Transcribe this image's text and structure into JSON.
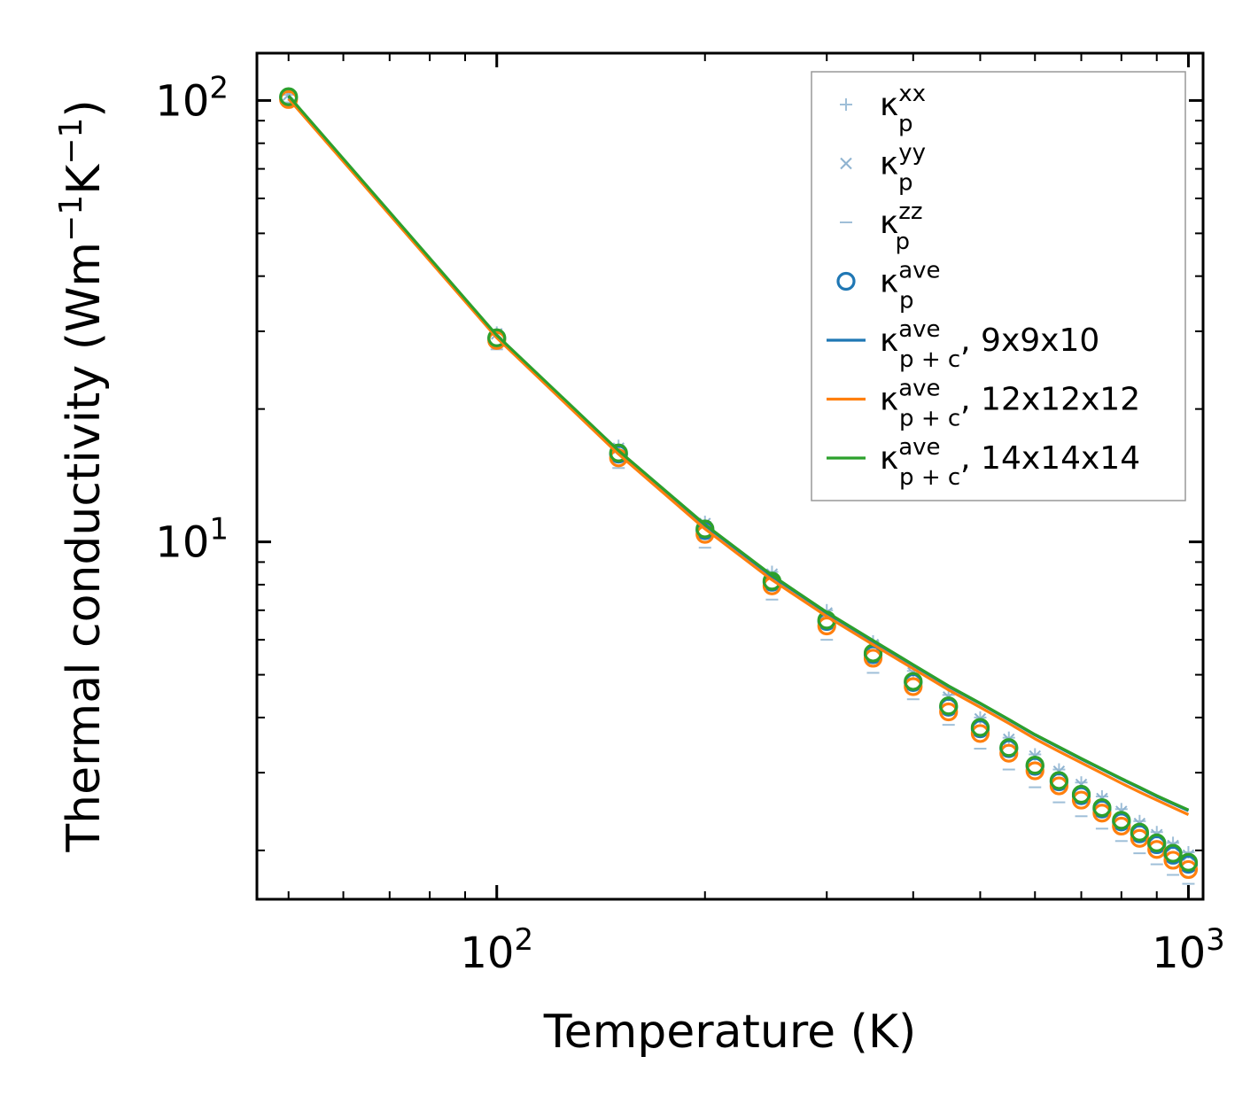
{
  "chart_data": {
    "type": "scatter",
    "x_scale": "log",
    "y_scale": "log",
    "xlabel": "Temperature (K)",
    "ylabel_parts": {
      "base": "Thermal conductivity (Wm",
      "exp1": "−1",
      "mid": "K",
      "exp2": "−1",
      "end": ")"
    },
    "xlim": [
      45,
      1050
    ],
    "ylim": [
      1.55,
      128
    ],
    "x_tick_labels": [
      {
        "value": 100,
        "base": "10",
        "exp": "2"
      },
      {
        "value": 1000,
        "base": "10",
        "exp": "3"
      }
    ],
    "y_tick_labels": [
      {
        "value": 10,
        "base": "10",
        "exp": "1"
      },
      {
        "value": 100,
        "base": "10",
        "exp": "2"
      }
    ],
    "grid": false,
    "legend_position": "top-right",
    "x": [
      50,
      100,
      150,
      200,
      250,
      300,
      350,
      400,
      450,
      500,
      550,
      600,
      650,
      700,
      750,
      800,
      850,
      900,
      950,
      1000
    ],
    "series": [
      {
        "name": "kappa_p_xx",
        "marker": "plus",
        "color": "#9fbfd8",
        "values": [
          103,
          29.8,
          16.5,
          11.1,
          8.55,
          7.0,
          5.95,
          5.1,
          4.5,
          4.0,
          3.6,
          3.3,
          3.05,
          2.85,
          2.65,
          2.48,
          2.33,
          2.2,
          2.08,
          1.98
        ]
      },
      {
        "name": "kappa_p_yy",
        "marker": "cross",
        "color": "#8fb3d0",
        "values": [
          103,
          29.6,
          16.3,
          11.0,
          8.45,
          6.9,
          5.85,
          5.05,
          4.45,
          3.97,
          3.57,
          3.27,
          3.02,
          2.82,
          2.62,
          2.45,
          2.3,
          2.17,
          2.05,
          1.95
        ]
      },
      {
        "name": "kappa_p_zz",
        "marker": "dash",
        "color": "#9fbfd8",
        "values": [
          99,
          27.3,
          14.7,
          9.7,
          7.4,
          6.0,
          5.05,
          4.4,
          3.85,
          3.4,
          3.05,
          2.78,
          2.57,
          2.39,
          2.24,
          2.1,
          1.97,
          1.86,
          1.76,
          1.68
        ]
      },
      {
        "name": "kappa_p_ave",
        "marker": "circle",
        "color": "#1f77b4",
        "values": [
          101.5,
          28.9,
          15.8,
          10.6,
          8.1,
          6.6,
          5.55,
          4.8,
          4.22,
          3.77,
          3.4,
          3.1,
          2.86,
          2.66,
          2.48,
          2.32,
          2.18,
          2.06,
          1.95,
          1.86
        ]
      },
      {
        "name": "kappa_p_ave_12",
        "marker": "circle",
        "color": "#ff7f0e",
        "values": [
          100.5,
          28.6,
          15.5,
          10.4,
          7.95,
          6.45,
          5.45,
          4.7,
          4.12,
          3.68,
          3.32,
          3.03,
          2.8,
          2.6,
          2.43,
          2.27,
          2.13,
          2.01,
          1.9,
          1.81
        ]
      },
      {
        "name": "kappa_p_ave_14",
        "marker": "circle",
        "color": "#2ca02c",
        "values": [
          102,
          29.0,
          15.9,
          10.7,
          8.15,
          6.65,
          5.6,
          4.83,
          4.25,
          3.8,
          3.42,
          3.12,
          2.88,
          2.68,
          2.5,
          2.34,
          2.2,
          2.08,
          1.97,
          1.88
        ]
      },
      {
        "name": "kappa_pc_ave_9x9x10",
        "marker": "line",
        "color": "#1f77b4",
        "values": [
          102,
          29.3,
          16.0,
          10.9,
          8.35,
          6.9,
          5.95,
          5.25,
          4.7,
          4.3,
          3.95,
          3.65,
          3.42,
          3.22,
          3.05,
          2.9,
          2.77,
          2.65,
          2.55,
          2.46
        ]
      },
      {
        "name": "kappa_pc_ave_12x12x12",
        "marker": "line",
        "color": "#ff7f0e",
        "values": [
          101,
          29.0,
          15.8,
          10.7,
          8.2,
          6.78,
          5.85,
          5.16,
          4.62,
          4.22,
          3.88,
          3.58,
          3.35,
          3.16,
          2.99,
          2.84,
          2.71,
          2.6,
          2.5,
          2.41
        ]
      },
      {
        "name": "kappa_pc_ave_14x14x14",
        "marker": "line",
        "color": "#2ca02c",
        "values": [
          102.5,
          29.4,
          16.1,
          10.95,
          8.4,
          6.93,
          5.98,
          5.27,
          4.72,
          4.31,
          3.96,
          3.66,
          3.43,
          3.23,
          3.06,
          2.91,
          2.78,
          2.66,
          2.56,
          2.47
        ]
      }
    ],
    "legend": [
      {
        "marker": "plus",
        "color": "#9fbfd8",
        "label": "κ",
        "sub": "p",
        "sup": "xx",
        "suffix": ""
      },
      {
        "marker": "cross",
        "color": "#8fb3d0",
        "label": "κ",
        "sub": "p",
        "sup": "yy",
        "suffix": ""
      },
      {
        "marker": "dash",
        "color": "#9fbfd8",
        "label": "κ",
        "sub": "p",
        "sup": "zz",
        "suffix": ""
      },
      {
        "marker": "circle",
        "color": "#1f77b4",
        "label": "κ",
        "sub": "p",
        "sup": "ave",
        "suffix": ""
      },
      {
        "marker": "line",
        "color": "#1f77b4",
        "label": "κ",
        "sub": "p + c",
        "sup": "ave",
        "suffix": ", 9x9x10"
      },
      {
        "marker": "line",
        "color": "#ff7f0e",
        "label": "κ",
        "sub": "p + c",
        "sup": "ave",
        "suffix": ", 12x12x12"
      },
      {
        "marker": "line",
        "color": "#2ca02c",
        "label": "κ",
        "sub": "p + c",
        "sup": "ave",
        "suffix": ", 14x14x14"
      }
    ]
  }
}
